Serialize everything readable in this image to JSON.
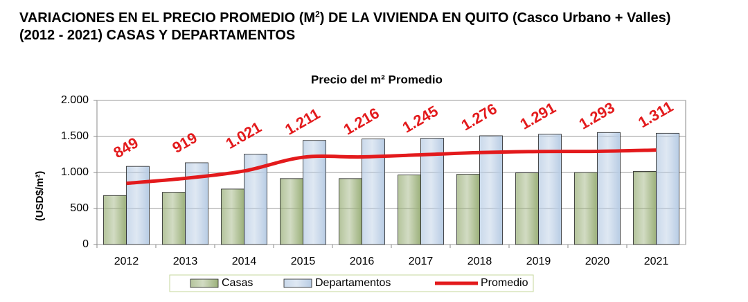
{
  "chart_data": {
    "type": "bar",
    "title": [
      "VARIACIONES EN EL PRECIO PROMEDIO (M",
      "2",
      ") DE LA VIVIENDA EN QUITO (Casco Urbano + Valles) (2012 - 2021) CASAS Y DEPARTAMENTOS"
    ],
    "subtitle": "Precio del m² Promedio",
    "y_label": "(USD$/m²)",
    "categories": [
      "2012",
      "2013",
      "2014",
      "2015",
      "2016",
      "2017",
      "2018",
      "2019",
      "2020",
      "2021"
    ],
    "series": [
      {
        "name": "Casas",
        "type": "bar",
        "color": "#9bb07a",
        "values": [
          680,
          725,
          770,
          915,
          915,
          965,
          975,
          995,
          1000,
          1015
        ]
      },
      {
        "name": "Departamentos",
        "type": "bar",
        "color": "#b8cce4",
        "values": [
          1085,
          1135,
          1255,
          1445,
          1465,
          1475,
          1510,
          1530,
          1555,
          1545
        ]
      },
      {
        "name": "Promedio",
        "type": "line",
        "color": "#e31a1c",
        "values": [
          849,
          919,
          1021,
          1211,
          1216,
          1245,
          1276,
          1291,
          1293,
          1311
        ],
        "value_labels": [
          "849",
          "919",
          "1.021",
          "1.211",
          "1.216",
          "1.245",
          "1.276",
          "1.291",
          "1.293",
          "1.311"
        ]
      }
    ],
    "ylim": [
      0,
      2000
    ],
    "yticks": [
      0,
      500,
      {
        "value": 1000,
        "label": "1.000"
      },
      {
        "value": 1500,
        "label": "1.500"
      },
      {
        "value": 2000,
        "label": "2.000"
      }
    ],
    "grid": true,
    "legend": "bottom"
  }
}
